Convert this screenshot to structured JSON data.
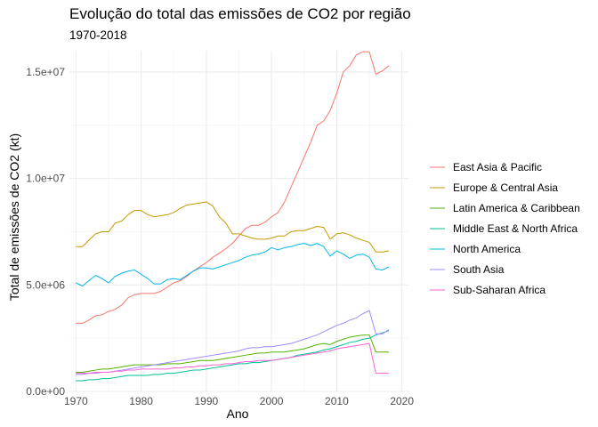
{
  "chart_data": {
    "type": "line",
    "title": "Evolução do total das emissões de CO2 por região",
    "subtitle": "1970-2018",
    "xlabel": "Ano",
    "ylabel": "Total de emissões de CO2 (kt)",
    "xlim": [
      1969,
      2021
    ],
    "ylim": [
      0,
      16000000
    ],
    "x_ticks": [
      1970,
      1980,
      1990,
      2000,
      2010,
      2020
    ],
    "y_ticks": [
      {
        "value": 0,
        "label": "0.0e+00"
      },
      {
        "value": 5000000,
        "label": "5.0e+06"
      },
      {
        "value": 10000000,
        "label": "1.0e+07"
      },
      {
        "value": 15000000,
        "label": "1.5e+07"
      }
    ],
    "grid": true,
    "legend_position": "right",
    "x": [
      1970,
      1971,
      1972,
      1973,
      1974,
      1975,
      1976,
      1977,
      1978,
      1979,
      1980,
      1981,
      1982,
      1983,
      1984,
      1985,
      1986,
      1987,
      1988,
      1989,
      1990,
      1991,
      1992,
      1993,
      1994,
      1995,
      1996,
      1997,
      1998,
      1999,
      2000,
      2001,
      2002,
      2003,
      2004,
      2005,
      2006,
      2007,
      2008,
      2009,
      2010,
      2011,
      2012,
      2013,
      2014,
      2015,
      2016,
      2017,
      2018
    ],
    "series": [
      {
        "name": "East Asia & Pacific",
        "color": "#F8766D",
        "values": [
          3200000,
          3200000,
          3350000,
          3550000,
          3600000,
          3750000,
          3850000,
          4050000,
          4400000,
          4550000,
          4600000,
          4600000,
          4600000,
          4700000,
          4900000,
          5100000,
          5200000,
          5400000,
          5650000,
          5850000,
          6050000,
          6300000,
          6500000,
          6700000,
          6950000,
          7300000,
          7650000,
          7800000,
          7800000,
          7950000,
          8200000,
          8400000,
          8900000,
          9600000,
          10300000,
          11000000,
          11700000,
          12500000,
          12700000,
          13200000,
          14000000,
          15000000,
          15300000,
          15800000,
          15950000,
          15950000,
          14900000,
          15050000,
          15300000
        ]
      },
      {
        "name": "Europe & Central Asia",
        "color": "#C49A00",
        "values": [
          6800000,
          6800000,
          7100000,
          7400000,
          7500000,
          7500000,
          7900000,
          8000000,
          8300000,
          8500000,
          8500000,
          8300000,
          8200000,
          8250000,
          8300000,
          8400000,
          8600000,
          8750000,
          8800000,
          8850000,
          8900000,
          8700000,
          8200000,
          7900000,
          7400000,
          7400000,
          7300000,
          7200000,
          7150000,
          7150000,
          7200000,
          7300000,
          7300000,
          7500000,
          7550000,
          7550000,
          7650000,
          7750000,
          7700000,
          7150000,
          7400000,
          7450000,
          7350000,
          7200000,
          7100000,
          7000000,
          6550000,
          6550000,
          6600000
        ]
      },
      {
        "name": "Latin America & Caribbean",
        "color": "#53B400",
        "values": [
          900000,
          900000,
          950000,
          1000000,
          1050000,
          1050000,
          1100000,
          1150000,
          1200000,
          1250000,
          1250000,
          1250000,
          1250000,
          1250000,
          1300000,
          1300000,
          1300000,
          1350000,
          1400000,
          1450000,
          1450000,
          1450000,
          1500000,
          1550000,
          1600000,
          1650000,
          1700000,
          1750000,
          1800000,
          1800000,
          1850000,
          1850000,
          1850000,
          1900000,
          1950000,
          2000000,
          2100000,
          2200000,
          2250000,
          2200000,
          2350000,
          2450000,
          2550000,
          2600000,
          2650000,
          2650000,
          1850000,
          1850000,
          1850000
        ]
      },
      {
        "name": "Middle East & North Africa",
        "color": "#00C094",
        "values": [
          500000,
          500000,
          550000,
          550000,
          600000,
          600000,
          650000,
          700000,
          750000,
          750000,
          750000,
          750000,
          800000,
          800000,
          850000,
          850000,
          900000,
          950000,
          1000000,
          1000000,
          1050000,
          1100000,
          1150000,
          1200000,
          1250000,
          1300000,
          1300000,
          1350000,
          1350000,
          1400000,
          1450000,
          1500000,
          1550000,
          1600000,
          1700000,
          1750000,
          1800000,
          1850000,
          1950000,
          2000000,
          2100000,
          2200000,
          2300000,
          2350000,
          2450000,
          2500000,
          2650000,
          2750000,
          2850000
        ]
      },
      {
        "name": "North America",
        "color": "#00B6EB",
        "values": [
          5100000,
          4950000,
          5200000,
          5450000,
          5300000,
          5100000,
          5400000,
          5550000,
          5650000,
          5700000,
          5500000,
          5300000,
          5050000,
          5050000,
          5250000,
          5300000,
          5250000,
          5450000,
          5650000,
          5800000,
          5800000,
          5750000,
          5850000,
          5950000,
          6050000,
          6150000,
          6300000,
          6400000,
          6450000,
          6550000,
          6750000,
          6650000,
          6750000,
          6800000,
          6900000,
          6950000,
          6850000,
          6950000,
          6800000,
          6350000,
          6600000,
          6450000,
          6250000,
          6400000,
          6450000,
          6300000,
          5750000,
          5700000,
          5850000
        ]
      },
      {
        "name": "South Asia",
        "color": "#A58AFF",
        "values": [
          800000,
          800000,
          850000,
          850000,
          900000,
          900000,
          950000,
          1000000,
          1050000,
          1100000,
          1150000,
          1200000,
          1250000,
          1300000,
          1350000,
          1400000,
          1450000,
          1500000,
          1550000,
          1600000,
          1650000,
          1700000,
          1750000,
          1800000,
          1850000,
          1900000,
          2000000,
          2050000,
          2050000,
          2100000,
          2100000,
          2150000,
          2200000,
          2250000,
          2350000,
          2450000,
          2550000,
          2650000,
          2800000,
          2950000,
          3100000,
          3200000,
          3350000,
          3450000,
          3650000,
          3800000,
          2700000,
          2700000,
          2900000
        ]
      },
      {
        "name": "Sub-Saharan Africa",
        "color": "#FB61D7",
        "values": [
          850000,
          850000,
          850000,
          900000,
          900000,
          900000,
          950000,
          950000,
          1000000,
          1000000,
          1050000,
          1050000,
          1050000,
          1050000,
          1050000,
          1100000,
          1100000,
          1150000,
          1150000,
          1200000,
          1200000,
          1250000,
          1250000,
          1300000,
          1300000,
          1350000,
          1400000,
          1400000,
          1450000,
          1450000,
          1450000,
          1500000,
          1550000,
          1600000,
          1650000,
          1700000,
          1750000,
          1800000,
          1850000,
          1900000,
          2000000,
          2050000,
          2100000,
          2150000,
          2200000,
          2250000,
          850000,
          850000,
          850000
        ]
      }
    ]
  }
}
